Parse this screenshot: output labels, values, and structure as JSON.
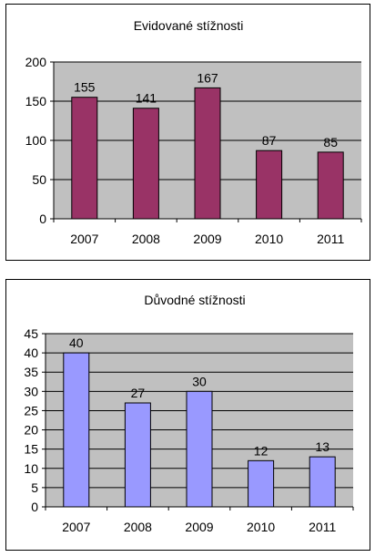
{
  "chart_data": [
    {
      "type": "bar",
      "title": "Evidované stížnosti",
      "categories": [
        "2007",
        "2008",
        "2009",
        "2010",
        "2011"
      ],
      "values": [
        155,
        141,
        167,
        87,
        85
      ],
      "data_labels": [
        "155",
        "141",
        "167",
        "87",
        "85"
      ],
      "ylim": [
        0,
        200
      ],
      "y_ticks": [
        0,
        50,
        100,
        150,
        200
      ],
      "y_tick_labels": [
        "0",
        "50",
        "100",
        "150",
        "200"
      ],
      "xlabel": "",
      "ylabel": "",
      "grid": true,
      "legend": "none",
      "colors": {
        "bar": "#993366",
        "bar_border": "#000000",
        "plot_bg": "#c0c0c0",
        "gridline": "#000000"
      }
    },
    {
      "type": "bar",
      "title": "Důvodné stížnosti",
      "categories": [
        "2007",
        "2008",
        "2009",
        "2010",
        "2011"
      ],
      "values": [
        40,
        27,
        30,
        12,
        13
      ],
      "data_labels": [
        "40",
        "27",
        "30",
        "12",
        "13"
      ],
      "ylim": [
        0,
        45
      ],
      "y_ticks": [
        0,
        5,
        10,
        15,
        20,
        25,
        30,
        35,
        40,
        45
      ],
      "y_tick_labels": [
        "0",
        "5",
        "10",
        "15",
        "20",
        "25",
        "30",
        "35",
        "40",
        "45"
      ],
      "xlabel": "",
      "ylabel": "",
      "grid": true,
      "legend": "none",
      "colors": {
        "bar": "#9999ff",
        "bar_border": "#000000",
        "plot_bg": "#c0c0c0",
        "gridline": "#000000"
      }
    }
  ]
}
